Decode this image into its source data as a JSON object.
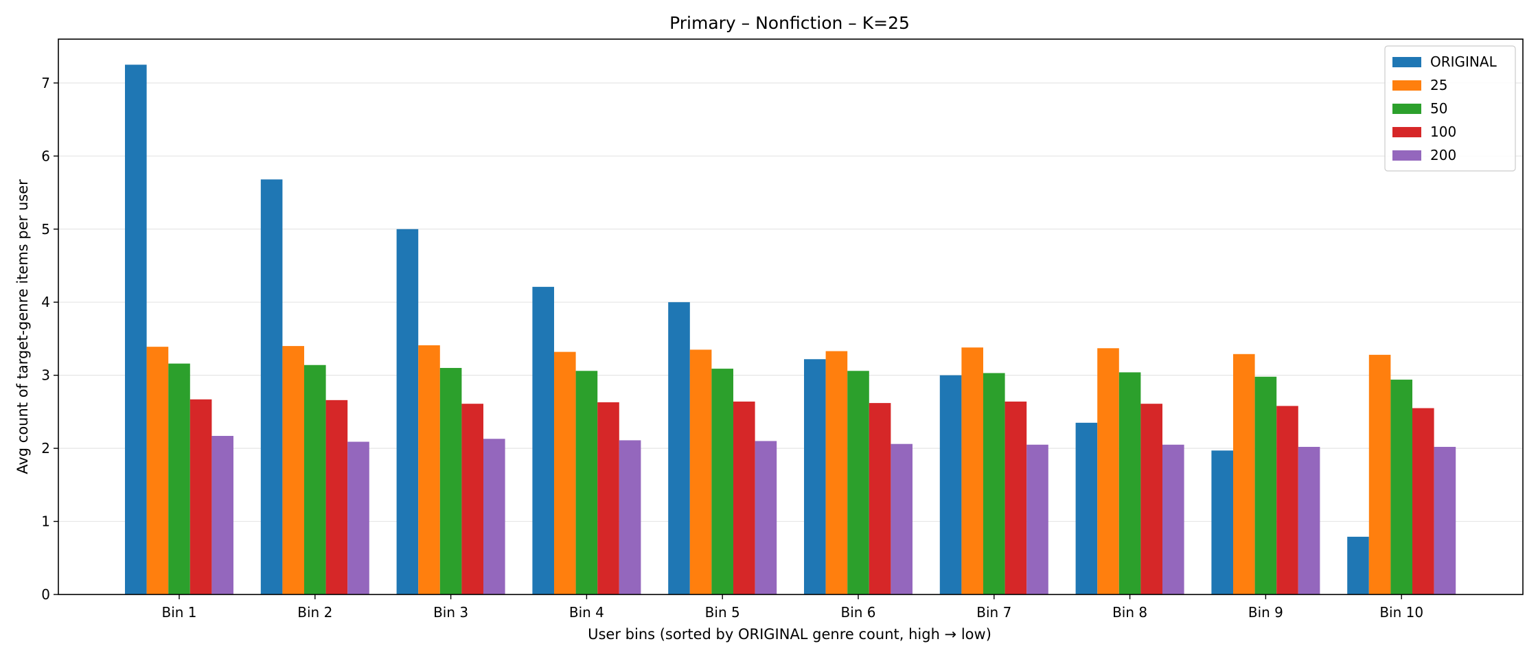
{
  "chart_data": {
    "type": "bar",
    "title": "Primary – Nonfiction – K=25",
    "xlabel": "User bins (sorted by ORIGINAL genre count, high → low)",
    "ylabel": "Avg count of target-genre items per user",
    "categories": [
      "Bin 1",
      "Bin 2",
      "Bin 3",
      "Bin 4",
      "Bin 5",
      "Bin 6",
      "Bin 7",
      "Bin 8",
      "Bin 9",
      "Bin 10"
    ],
    "ylim": [
      0,
      7.6
    ],
    "yticks": [
      0,
      1,
      2,
      3,
      4,
      5,
      6,
      7
    ],
    "grid": "y",
    "legend_position": "top-right",
    "series": [
      {
        "name": "ORIGINAL",
        "color": "#1f77b4",
        "values": [
          7.25,
          5.68,
          5.0,
          4.21,
          4.0,
          3.22,
          3.0,
          2.35,
          1.97,
          0.79
        ]
      },
      {
        "name": "25",
        "color": "#ff7f0e",
        "values": [
          3.39,
          3.4,
          3.41,
          3.32,
          3.35,
          3.33,
          3.38,
          3.37,
          3.29,
          3.28
        ]
      },
      {
        "name": "50",
        "color": "#2ca02c",
        "values": [
          3.16,
          3.14,
          3.1,
          3.06,
          3.09,
          3.06,
          3.03,
          3.04,
          2.98,
          2.94
        ]
      },
      {
        "name": "100",
        "color": "#d62728",
        "values": [
          2.67,
          2.66,
          2.61,
          2.63,
          2.64,
          2.62,
          2.64,
          2.61,
          2.58,
          2.55
        ]
      },
      {
        "name": "200",
        "color": "#9467bd",
        "values": [
          2.17,
          2.09,
          2.13,
          2.11,
          2.1,
          2.06,
          2.05,
          2.05,
          2.02,
          2.02
        ]
      }
    ]
  }
}
